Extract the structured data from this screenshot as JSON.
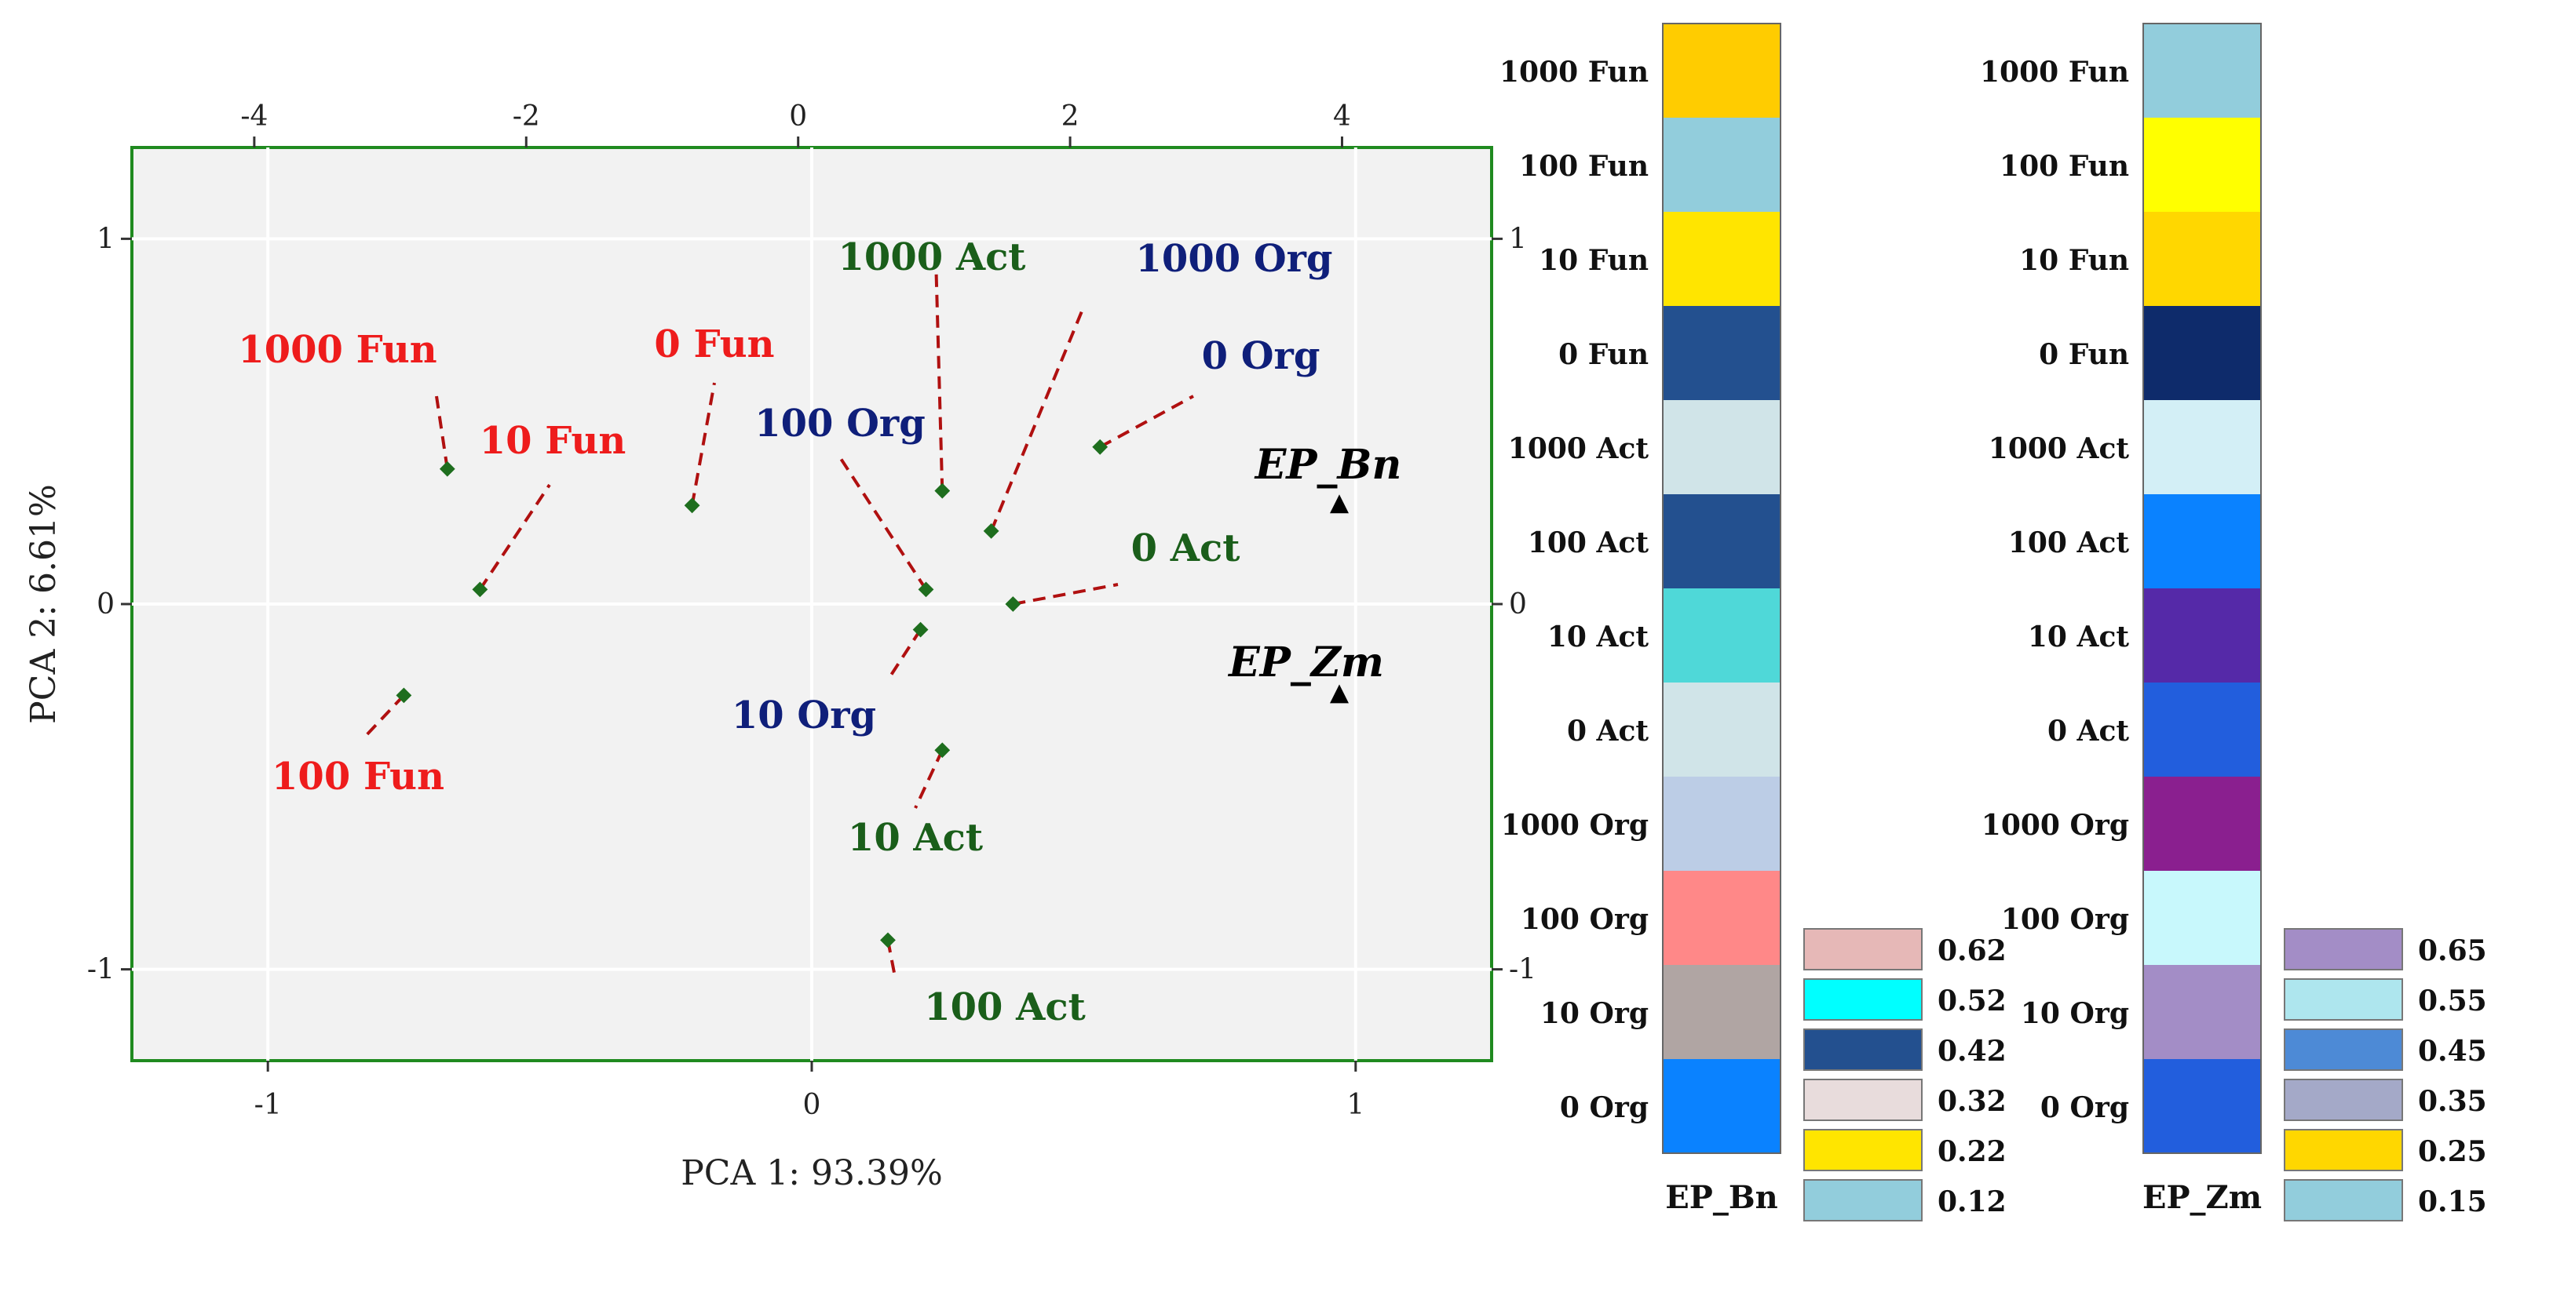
{
  "chart_data": [
    {
      "type": "scatter",
      "title": "",
      "xlabel": "PCA 1: 93.39%",
      "ylabel": "PCA 2:  6.61%",
      "xlim": [
        -1.25,
        1.25
      ],
      "ylim": [
        -1.25,
        1.25
      ],
      "x_ticks": [
        -1,
        0,
        1
      ],
      "y_ticks": [
        -1,
        0,
        1
      ],
      "x_ticks_top": [
        -4,
        -2,
        0,
        2,
        4
      ],
      "y_ticks_right": [
        -1,
        0,
        1
      ],
      "grid": true,
      "cases": [
        {
          "label": "1000 Fun",
          "group": "Fun",
          "x": -0.67,
          "y": 0.37
        },
        {
          "label": "100 Fun",
          "group": "Fun",
          "x": -0.75,
          "y": -0.25
        },
        {
          "label": "10 Fun",
          "group": "Fun",
          "x": -0.61,
          "y": 0.04
        },
        {
          "label": "0 Fun",
          "group": "Fun",
          "x": -0.22,
          "y": 0.27
        },
        {
          "label": "1000 Act",
          "group": "Act",
          "x": 0.24,
          "y": 0.31
        },
        {
          "label": "100 Act",
          "group": "Act",
          "x": 0.14,
          "y": -0.92
        },
        {
          "label": "10 Act",
          "group": "Act",
          "x": 0.24,
          "y": -0.4
        },
        {
          "label": "0 Act",
          "group": "Act",
          "x": 0.37,
          "y": 0.0
        },
        {
          "label": "1000 Org",
          "group": "Org",
          "x": 0.33,
          "y": 0.2
        },
        {
          "label": "100 Org",
          "group": "Org",
          "x": 0.21,
          "y": 0.04
        },
        {
          "label": "10 Org",
          "group": "Org",
          "x": 0.2,
          "y": -0.07
        },
        {
          "label": "0 Org",
          "group": "Org",
          "x": 0.53,
          "y": 0.43
        }
      ],
      "variables": [
        {
          "label": "EP_Bn",
          "x": 0.97,
          "y": 0.27
        },
        {
          "label": "EP_Zm",
          "x": 0.97,
          "y": -0.25
        }
      ],
      "colors": {
        "Fun": "#ee1c1c",
        "Act": "#1a5e1a",
        "Org": "#0f1f7a",
        "points": "#1e6e1e",
        "leaders": "#b01010",
        "frame": "#1f8a1f"
      }
    },
    {
      "type": "heatmap",
      "categories": [
        "1000 Fun",
        "100 Fun",
        "10 Fun",
        "0 Fun",
        "1000 Act",
        "100 Act",
        "10 Act",
        "0 Act",
        "1000 Org",
        "100 Org",
        "10 Org",
        "0 Org"
      ],
      "column": "EP_Bn",
      "cells": [
        "#ffcc00",
        "#92cddc",
        "#ffe500",
        "#23508f",
        "#d0e4e8",
        "#23508f",
        "#4fd8d8",
        "#d0e4e8",
        "#bccde6",
        "#ff8888",
        "#b0a5a3",
        "#0a82ff"
      ],
      "legend": [
        {
          "label": "0.62",
          "color": "#e6b8b7"
        },
        {
          "label": "0.52",
          "color": "#00ffff"
        },
        {
          "label": "0.42",
          "color": "#23508f"
        },
        {
          "label": "0.32",
          "color": "#e8dcdc"
        },
        {
          "label": "0.22",
          "color": "#ffe500"
        },
        {
          "label": "0.12",
          "color": "#92cddc"
        }
      ]
    },
    {
      "type": "heatmap",
      "categories": [
        "1000 Fun",
        "100 Fun",
        "10 Fun",
        "0 Fun",
        "1000 Act",
        "100 Act",
        "10 Act",
        "0 Act",
        "1000 Org",
        "100 Org",
        "10 Org",
        "0 Org"
      ],
      "column": "EP_Zm",
      "cells": [
        "#92cddc",
        "#ffff00",
        "#ffd700",
        "#0e2b6b",
        "#d3eff6",
        "#0a82ff",
        "#5529a8",
        "#225edd",
        "#8a1f8f",
        "#c8f8fc",
        "#a38dc6",
        "#225edd"
      ],
      "legend": [
        {
          "label": "0.65",
          "color": "#a38dc6"
        },
        {
          "label": "0.55",
          "color": "#aee6ee"
        },
        {
          "label": "0.45",
          "color": "#4d8ad6"
        },
        {
          "label": "0.35",
          "color": "#a4a9c8"
        },
        {
          "label": "0.25",
          "color": "#ffd700"
        },
        {
          "label": "0.15",
          "color": "#92cddc"
        }
      ]
    }
  ]
}
